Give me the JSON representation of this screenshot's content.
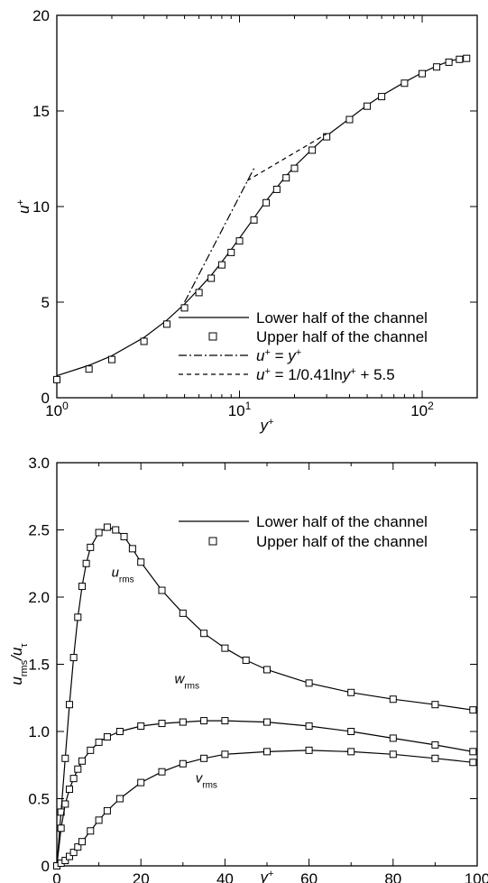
{
  "chart_data": [
    {
      "type": "line",
      "x_scale": "log",
      "xlim": [
        1,
        200
      ],
      "ylim": [
        0,
        20
      ],
      "x_ticks": [
        1,
        10,
        100
      ],
      "x_tick_labels": [
        [
          "10",
          "0"
        ],
        [
          "10",
          "1"
        ],
        [
          "10",
          "2"
        ]
      ],
      "y_ticks": [
        0,
        5,
        10,
        15,
        20
      ],
      "y_tick_labels": [
        "0",
        "5",
        "10",
        "15",
        "20"
      ],
      "xlabel": {
        "main": "y",
        "sup": "+"
      },
      "ylabel": {
        "main": "u",
        "sup": "+"
      },
      "grid": false,
      "legend_position": "bottom-right",
      "legend": [
        {
          "label": "Lower half of the channel",
          "style": "solid"
        },
        {
          "label": "Upper half of the channel",
          "style": "square-marker"
        },
        {
          "label": "u+ = y+",
          "style": "dash-dot",
          "rich": [
            [
              "u",
              "sup"
            ],
            [
              "+",
              "s"
            ],
            [
              " = ",
              "n"
            ],
            [
              "y",
              "i"
            ],
            [
              "+",
              "s"
            ]
          ]
        },
        {
          "label": "u+ = 1/0.41lny+ + 5.5",
          "style": "dashed",
          "rich": [
            [
              "u",
              "i"
            ],
            [
              "+",
              "s"
            ],
            [
              " = 1/0.41ln",
              "n"
            ],
            [
              "y",
              "i"
            ],
            [
              "+",
              "s"
            ],
            [
              " + 5.5",
              "n"
            ]
          ]
        }
      ],
      "series": [
        {
          "name": "Lower half of the channel",
          "style": "solid",
          "x": [
            1,
            1.5,
            2,
            3,
            4,
            5,
            6,
            7,
            8,
            9,
            10,
            12,
            14,
            16,
            18,
            20,
            25,
            30,
            40,
            50,
            60,
            80,
            100,
            120,
            140,
            160,
            175
          ],
          "y": [
            1.15,
            1.7,
            2.2,
            3.15,
            4.05,
            4.9,
            5.7,
            6.4,
            7.1,
            7.75,
            8.35,
            9.4,
            10.3,
            11.0,
            11.6,
            12.1,
            13.0,
            13.7,
            14.6,
            15.3,
            15.8,
            16.5,
            17.0,
            17.35,
            17.6,
            17.72,
            17.75
          ]
        },
        {
          "name": "Upper half of the channel",
          "style": "square-marker",
          "x": [
            1,
            1.5,
            2,
            3,
            4,
            5,
            6,
            7,
            8,
            9,
            10,
            12,
            14,
            16,
            18,
            20,
            25,
            30,
            40,
            50,
            60,
            80,
            100,
            120,
            140,
            160,
            175
          ],
          "y": [
            0.95,
            1.5,
            2.0,
            2.95,
            3.85,
            4.7,
            5.5,
            6.25,
            6.95,
            7.6,
            8.2,
            9.3,
            10.2,
            10.9,
            11.5,
            12.0,
            12.95,
            13.65,
            14.55,
            15.25,
            15.75,
            16.45,
            16.95,
            17.3,
            17.55,
            17.7,
            17.75
          ]
        },
        {
          "name": "u+ = y+",
          "style": "dash-dot",
          "x": [
            5,
            12
          ],
          "y": [
            5,
            12
          ]
        },
        {
          "name": "u+ = 1/0.41lny+ + 5.5",
          "style": "dashed",
          "x": [
            11,
            30
          ],
          "y": [
            11.35,
            13.8
          ]
        }
      ]
    },
    {
      "type": "line",
      "x_scale": "linear",
      "xlim": [
        0,
        100
      ],
      "ylim": [
        0,
        3
      ],
      "x_ticks": [
        0,
        20,
        40,
        60,
        80,
        100
      ],
      "x_tick_labels": [
        "0",
        "20",
        "40",
        "60",
        "80",
        "100"
      ],
      "y_ticks": [
        0,
        0.5,
        1.0,
        1.5,
        2.0,
        2.5,
        3.0
      ],
      "y_tick_labels": [
        "0",
        "0.5",
        "1.0",
        "1.5",
        "2.0",
        "2.5",
        "3.0"
      ],
      "xlabel": {
        "main": "y",
        "sup": "+"
      },
      "ylabel": {
        "main": "u",
        "sub": "rms",
        "sep": "/u",
        "sub2": "τ"
      },
      "grid": false,
      "legend_position": "top-right",
      "legend": [
        {
          "label": "Lower half of the channel",
          "style": "solid"
        },
        {
          "label": "Upper half of the channel",
          "style": "square-marker"
        }
      ],
      "annotations": [
        {
          "main": "u",
          "sub": "rms",
          "x": 13,
          "y": 2.15
        },
        {
          "main": "w",
          "sub": "rms",
          "x": 28,
          "y": 1.36
        },
        {
          "main": "v",
          "sub": "rms",
          "x": 33,
          "y": 0.62
        }
      ],
      "series": [
        {
          "name": "u_rms",
          "component": "u",
          "x": [
            0,
            1,
            2,
            3,
            4,
            5,
            6,
            7,
            8,
            10,
            12,
            14,
            16,
            18,
            20,
            25,
            30,
            35,
            40,
            45,
            50,
            60,
            70,
            80,
            90,
            99
          ],
          "y": [
            0,
            0.4,
            0.8,
            1.2,
            1.55,
            1.85,
            2.08,
            2.25,
            2.37,
            2.48,
            2.52,
            2.5,
            2.45,
            2.36,
            2.26,
            2.05,
            1.88,
            1.73,
            1.62,
            1.53,
            1.46,
            1.36,
            1.29,
            1.24,
            1.2,
            1.16
          ]
        },
        {
          "name": "w_rms",
          "component": "w",
          "x": [
            0,
            1,
            2,
            3,
            4,
            5,
            6,
            8,
            10,
            12,
            15,
            20,
            25,
            30,
            35,
            40,
            50,
            60,
            70,
            80,
            90,
            99
          ],
          "y": [
            0,
            0.28,
            0.46,
            0.57,
            0.65,
            0.72,
            0.78,
            0.86,
            0.92,
            0.96,
            1.0,
            1.04,
            1.06,
            1.07,
            1.08,
            1.08,
            1.07,
            1.04,
            1.0,
            0.95,
            0.9,
            0.85
          ]
        },
        {
          "name": "v_rms",
          "component": "v",
          "x": [
            0,
            1,
            2,
            3,
            4,
            5,
            6,
            8,
            10,
            12,
            15,
            20,
            25,
            30,
            35,
            40,
            50,
            60,
            70,
            80,
            90,
            99
          ],
          "y": [
            0,
            0.02,
            0.04,
            0.07,
            0.1,
            0.14,
            0.18,
            0.26,
            0.34,
            0.41,
            0.5,
            0.62,
            0.7,
            0.76,
            0.8,
            0.83,
            0.85,
            0.86,
            0.85,
            0.83,
            0.8,
            0.77
          ]
        }
      ]
    }
  ]
}
